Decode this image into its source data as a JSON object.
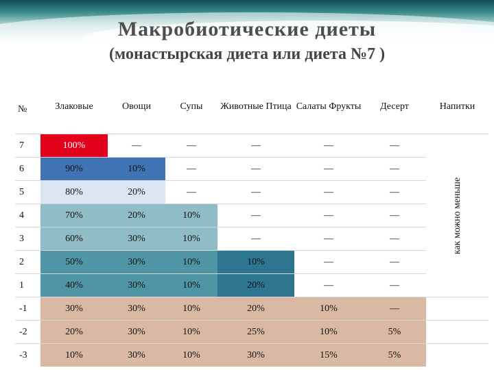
{
  "title": "Макробиотические диеты",
  "subtitle": "(монастырская диета или диета №7 )",
  "table": {
    "headers": [
      "№",
      "Злаковые",
      "Овощи",
      "Супы",
      "Животные Птица",
      "Салаты Фрукты",
      "Десерт",
      "Напитки"
    ],
    "beverage_note": "как можно меньше",
    "rows": [
      {
        "n": "7",
        "c": [
          "100%",
          "—",
          "—",
          "—",
          "—",
          "—"
        ]
      },
      {
        "n": "6",
        "c": [
          "90%",
          "10%",
          "—",
          "—",
          "—",
          "—"
        ]
      },
      {
        "n": "5",
        "c": [
          "80%",
          "20%",
          "—",
          "—",
          "—",
          "—"
        ]
      },
      {
        "n": "4",
        "c": [
          "70%",
          "20%",
          "10%",
          "—",
          "—",
          "—"
        ]
      },
      {
        "n": "3",
        "c": [
          "60%",
          "30%",
          "10%",
          "—",
          "—",
          "—"
        ]
      },
      {
        "n": "2",
        "c": [
          "50%",
          "30%",
          "10%",
          "10%",
          "—",
          "—"
        ]
      },
      {
        "n": "1",
        "c": [
          "40%",
          "30%",
          "10%",
          "20%",
          "—",
          "—"
        ]
      },
      {
        "n": "-1",
        "c": [
          "30%",
          "30%",
          "10%",
          "20%",
          "10%",
          "—"
        ]
      },
      {
        "n": "-2",
        "c": [
          "20%",
          "30%",
          "10%",
          "25%",
          "10%",
          "5%"
        ]
      },
      {
        "n": "-3",
        "c": [
          "10%",
          "30%",
          "10%",
          "30%",
          "15%",
          "5%"
        ]
      }
    ]
  },
  "colors": {
    "red": "#e2001a",
    "blue_dark": "#3f73b4",
    "blue_pale": "#dce6f2",
    "teal_light": "#8fbcc5",
    "teal_mid": "#4f95a6",
    "teal_dark": "#2d7591",
    "beige": "#d9b9a3"
  }
}
